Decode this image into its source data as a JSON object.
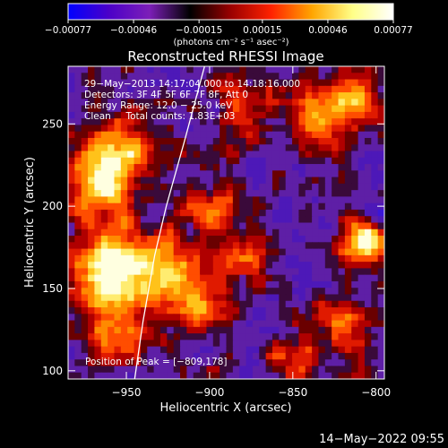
{
  "chart_data": {
    "type": "heatmap",
    "title": "Reconstructed RHESSI Image",
    "xlabel": "Heliocentric X (arcsec)",
    "ylabel": "Heliocentric Y (arcsec)",
    "xlim": [
      -985,
      -795
    ],
    "ylim": [
      95,
      285
    ],
    "x_ticks": [
      -950,
      -900,
      -850,
      -800
    ],
    "x_tick_labels": [
      "−950",
      "−900",
      "−850",
      "−800"
    ],
    "y_ticks": [
      100,
      150,
      200,
      250
    ],
    "y_tick_labels": [
      "100",
      "150",
      "200",
      "250"
    ],
    "colorbar": {
      "range": [
        -0.00077,
        0.00077
      ],
      "tick_values": [
        -0.00077,
        -0.00046,
        -0.00015,
        0.00015,
        0.00046,
        0.00077
      ],
      "tick_labels": [
        "−0.00077",
        "−0.00046",
        "−0.00015",
        "0.00015",
        "0.00046",
        "0.00077"
      ],
      "units": "(photons cm⁻² s⁻¹ asec⁻²)",
      "colors": [
        "#0000ff",
        "#4b00c8",
        "#7c1fb8",
        "#000000",
        "#9a0000",
        "#ff2200",
        "#ffa500",
        "#ffff88",
        "#ffffff"
      ]
    },
    "annotations": [
      "29−May−2013 14:17:04.000 to 14:18:16.000",
      "Detectors: 3F 4F 5F 6F 7F 8F, Att 0",
      "Energy Range: 12.0 − 25.0 keV",
      "Clean     Total counts: 1.83E+03"
    ],
    "peak_label": "Position of Peak = [−809,178]",
    "peak": [
      -809,
      178
    ],
    "limb_curve": [
      [
        -945,
        95
      ],
      [
        -940,
        130
      ],
      [
        -933,
        170
      ],
      [
        -926,
        200
      ],
      [
        -915,
        240
      ],
      [
        -903,
        285
      ]
    ],
    "emission_hotspots": [
      {
        "x": -960,
        "y": 160,
        "amp": 1.0,
        "sigma": 18
      },
      {
        "x": -965,
        "y": 215,
        "amp": 0.75,
        "sigma": 16
      },
      {
        "x": -950,
        "y": 235,
        "amp": 0.55,
        "sigma": 14
      },
      {
        "x": -925,
        "y": 160,
        "amp": 0.6,
        "sigma": 14
      },
      {
        "x": -905,
        "y": 140,
        "amp": 0.55,
        "sigma": 12
      },
      {
        "x": -880,
        "y": 170,
        "amp": 0.55,
        "sigma": 12
      },
      {
        "x": -900,
        "y": 200,
        "amp": 0.45,
        "sigma": 12
      },
      {
        "x": -880,
        "y": 260,
        "amp": 0.55,
        "sigma": 12
      },
      {
        "x": -830,
        "y": 255,
        "amp": 0.6,
        "sigma": 14
      },
      {
        "x": -810,
        "y": 265,
        "amp": 0.55,
        "sigma": 10
      },
      {
        "x": -809,
        "y": 178,
        "amp": 1.0,
        "sigma": 9
      },
      {
        "x": -820,
        "y": 130,
        "amp": 0.5,
        "sigma": 12
      },
      {
        "x": -850,
        "y": 105,
        "amp": 0.45,
        "sigma": 10
      },
      {
        "x": -955,
        "y": 120,
        "amp": 0.6,
        "sigma": 12
      }
    ]
  },
  "footer": {
    "timestamp": "14−May−2022 09:55"
  }
}
